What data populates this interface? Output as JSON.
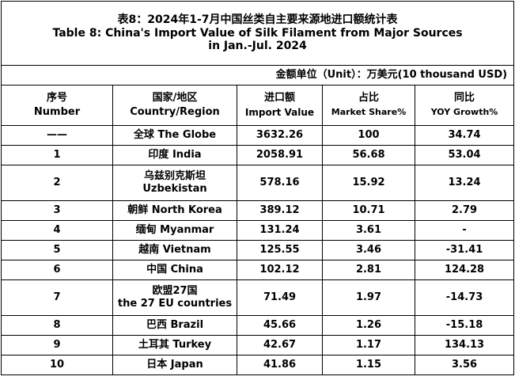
{
  "title": {
    "zh": "表8：2024年1-7月中国丝类自主要来源地进口额统计表",
    "en1": "Table 8: China's Import Value of Silk Filament from Major Sources",
    "en2": "in Jan.-Jul. 2024"
  },
  "unit": "金额单位（Unit）：万美元(10 thousand USD)",
  "headers": {
    "number": {
      "zh": "序号",
      "en": "Number"
    },
    "country": {
      "zh": "国家/地区",
      "en": "Country/Region"
    },
    "value": {
      "zh": "进口额",
      "en": "Import Value"
    },
    "share": {
      "zh": "占比",
      "en": "Market Share%"
    },
    "growth": {
      "zh": "同比",
      "en": "YOY Growth%"
    }
  },
  "rows": [
    {
      "number": "——",
      "country": [
        "全球  The Globe"
      ],
      "value": "3632.26",
      "share": "100",
      "growth": "34.74"
    },
    {
      "number": "1",
      "country": [
        "印度 India"
      ],
      "value": "2058.91",
      "share": "56.68",
      "growth": "53.04"
    },
    {
      "number": "2",
      "country": [
        "乌兹别克斯坦",
        "Uzbekistan"
      ],
      "value": "578.16",
      "share": "15.92",
      "growth": "13.24"
    },
    {
      "number": "3",
      "country": [
        "朝鲜  North Korea"
      ],
      "value": "389.12",
      "share": "10.71",
      "growth": "2.79"
    },
    {
      "number": "4",
      "country": [
        "缅甸 Myanmar"
      ],
      "value": "131.24",
      "share": "3.61",
      "growth": "-"
    },
    {
      "number": "5",
      "country": [
        "越南 Vietnam"
      ],
      "value": "125.55",
      "share": "3.46",
      "growth": "-31.41"
    },
    {
      "number": "6",
      "country": [
        "中国 China"
      ],
      "value": "102.12",
      "share": "2.81",
      "growth": "124.28"
    },
    {
      "number": "7",
      "country": [
        "欧盟27国",
        "the 27 EU countries"
      ],
      "value": "71.49",
      "share": "1.97",
      "growth": "-14.73"
    },
    {
      "number": "8",
      "country": [
        "巴西 Brazil"
      ],
      "value": "45.66",
      "share": "1.26",
      "growth": "-15.18"
    },
    {
      "number": "9",
      "country": [
        "土耳其 Turkey"
      ],
      "value": "42.67",
      "share": "1.17",
      "growth": "134.13"
    },
    {
      "number": "10",
      "country": [
        "日本 Japan"
      ],
      "value": "41.86",
      "share": "1.15",
      "growth": "3.56"
    }
  ]
}
